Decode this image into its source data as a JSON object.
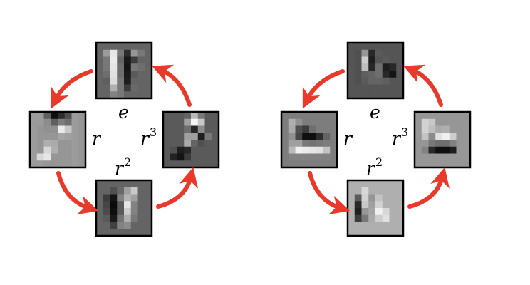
{
  "arrow_color": "#e8392a",
  "groups": [
    {
      "labels": {
        "e": "e",
        "r": "r",
        "r2": "r",
        "r2_exp": "2",
        "r3": "r",
        "r3_exp": "3"
      },
      "patches": {
        "top": [
          [
            100,
            100,
            100,
            100,
            100,
            100,
            100,
            100
          ],
          [
            100,
            155,
            230,
            120,
            45,
            150,
            120,
            100
          ],
          [
            100,
            120,
            235,
            100,
            25,
            60,
            100,
            100
          ],
          [
            100,
            120,
            230,
            110,
            20,
            120,
            110,
            100
          ],
          [
            100,
            110,
            225,
            110,
            25,
            90,
            100,
            100
          ],
          [
            100,
            95,
            220,
            120,
            30,
            100,
            100,
            100
          ],
          [
            100,
            100,
            175,
            120,
            60,
            105,
            100,
            100
          ],
          [
            100,
            100,
            130,
            120,
            100,
            100,
            100,
            100
          ]
        ],
        "left": [
          [
            155,
            155,
            95,
            15,
            45,
            80,
            155,
            150
          ],
          [
            155,
            155,
            140,
            95,
            125,
            110,
            155,
            150
          ],
          [
            155,
            150,
            145,
            145,
            235,
            200,
            155,
            150
          ],
          [
            155,
            150,
            150,
            150,
            165,
            160,
            155,
            150
          ],
          [
            155,
            150,
            175,
            170,
            150,
            150,
            155,
            150
          ],
          [
            155,
            150,
            215,
            175,
            150,
            150,
            155,
            150
          ],
          [
            155,
            215,
            230,
            150,
            150,
            150,
            155,
            150
          ],
          [
            155,
            155,
            150,
            150,
            150,
            150,
            155,
            150
          ]
        ],
        "bottom": [
          [
            100,
            100,
            100,
            100,
            100,
            100,
            100,
            100
          ],
          [
            100,
            100,
            80,
            105,
            160,
            200,
            100,
            100
          ],
          [
            100,
            60,
            20,
            130,
            180,
            160,
            100,
            100
          ],
          [
            100,
            70,
            10,
            90,
            230,
            130,
            100,
            100
          ],
          [
            100,
            75,
            15,
            90,
            205,
            130,
            100,
            100
          ],
          [
            100,
            90,
            25,
            115,
            175,
            120,
            100,
            100
          ],
          [
            100,
            100,
            65,
            130,
            140,
            100,
            100,
            100
          ],
          [
            100,
            100,
            100,
            100,
            100,
            100,
            100,
            100
          ]
        ],
        "right": [
          [
            90,
            90,
            90,
            100,
            185,
            120,
            90,
            90
          ],
          [
            90,
            90,
            90,
            160,
            245,
            200,
            90,
            90
          ],
          [
            90,
            90,
            90,
            110,
            40,
            140,
            90,
            90
          ],
          [
            90,
            90,
            90,
            160,
            160,
            30,
            120,
            90
          ],
          [
            90,
            90,
            90,
            170,
            100,
            80,
            90,
            90
          ],
          [
            90,
            80,
            30,
            40,
            90,
            90,
            90,
            90
          ],
          [
            90,
            35,
            20,
            60,
            90,
            90,
            90,
            90
          ],
          [
            90,
            90,
            90,
            90,
            90,
            90,
            90,
            90
          ]
        ]
      }
    },
    {
      "labels": {
        "e": "e",
        "r": "r",
        "r2": "r",
        "r2_exp": "2",
        "r3": "r",
        "r3_exp": "3"
      },
      "patches": {
        "top": [
          [
            85,
            85,
            85,
            85,
            85,
            85,
            85,
            85
          ],
          [
            85,
            80,
            150,
            40,
            90,
            85,
            85,
            85
          ],
          [
            85,
            80,
            205,
            30,
            85,
            90,
            85,
            85
          ],
          [
            85,
            80,
            190,
            40,
            110,
            30,
            40,
            85
          ],
          [
            85,
            80,
            95,
            100,
            110,
            40,
            20,
            85
          ],
          [
            85,
            80,
            90,
            100,
            100,
            95,
            85,
            85
          ],
          [
            85,
            85,
            85,
            85,
            85,
            85,
            85,
            85
          ],
          [
            85,
            85,
            85,
            85,
            85,
            85,
            85,
            85
          ]
        ],
        "left": [
          [
            125,
            125,
            125,
            125,
            125,
            125,
            125,
            125
          ],
          [
            125,
            175,
            145,
            125,
            125,
            125,
            125,
            125
          ],
          [
            125,
            170,
            80,
            60,
            110,
            125,
            125,
            125
          ],
          [
            125,
            145,
            70,
            15,
            15,
            45,
            100,
            125
          ],
          [
            125,
            160,
            160,
            120,
            115,
            120,
            125,
            125
          ],
          [
            125,
            185,
            240,
            235,
            230,
            225,
            195,
            125
          ],
          [
            125,
            130,
            130,
            130,
            130,
            130,
            130,
            125
          ],
          [
            125,
            125,
            125,
            125,
            125,
            125,
            125,
            125
          ]
        ],
        "bottom": [
          [
            175,
            175,
            175,
            175,
            175,
            175,
            175,
            175
          ],
          [
            175,
            175,
            215,
            175,
            175,
            175,
            175,
            175
          ],
          [
            175,
            90,
            210,
            150,
            195,
            175,
            175,
            175
          ],
          [
            175,
            40,
            200,
            160,
            210,
            175,
            175,
            175
          ],
          [
            175,
            30,
            150,
            165,
            240,
            215,
            175,
            175
          ],
          [
            175,
            60,
            120,
            170,
            205,
            225,
            175,
            175
          ],
          [
            175,
            175,
            175,
            175,
            175,
            175,
            175,
            175
          ],
          [
            175,
            175,
            175,
            175,
            175,
            175,
            175,
            175
          ]
        ],
        "right": [
          [
            150,
            150,
            150,
            150,
            150,
            150,
            150,
            150
          ],
          [
            150,
            210,
            200,
            150,
            150,
            150,
            150,
            150
          ],
          [
            150,
            210,
            190,
            170,
            175,
            150,
            150,
            150
          ],
          [
            150,
            195,
            140,
            225,
            240,
            205,
            150,
            150
          ],
          [
            150,
            150,
            120,
            110,
            110,
            130,
            150,
            150
          ],
          [
            150,
            130,
            40,
            15,
            15,
            30,
            150,
            150
          ],
          [
            150,
            150,
            150,
            150,
            150,
            150,
            150,
            150
          ],
          [
            150,
            150,
            150,
            150,
            150,
            150,
            150,
            150
          ]
        ]
      }
    }
  ]
}
